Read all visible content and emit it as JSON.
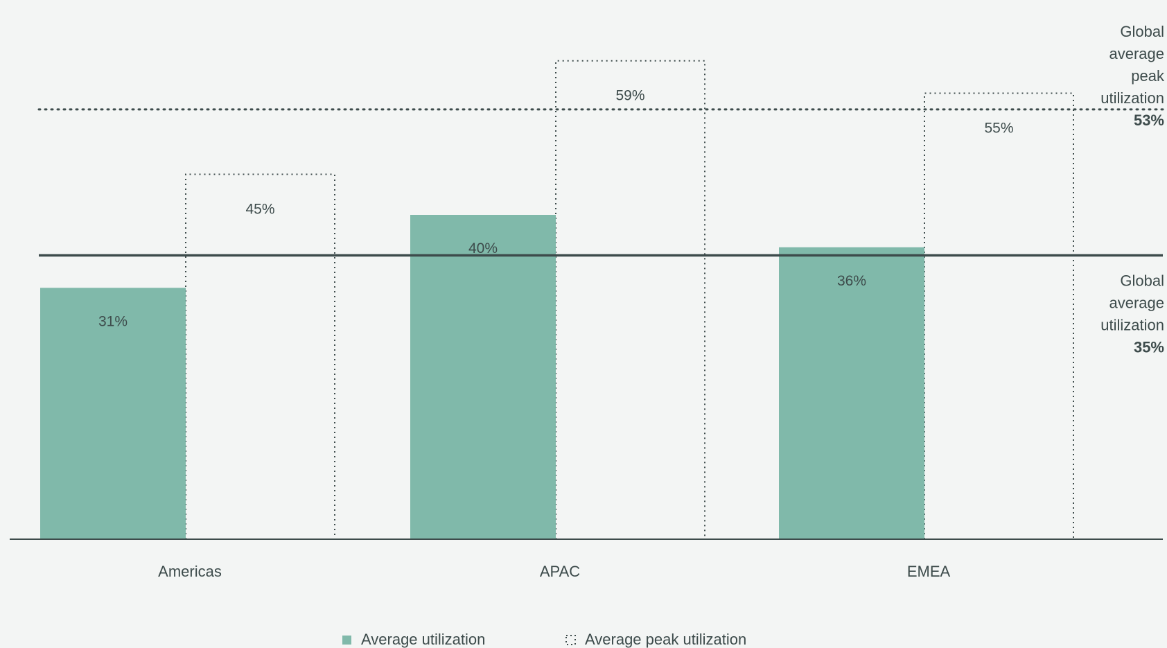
{
  "chart_data": {
    "type": "bar",
    "categories": [
      "Americas",
      "APAC",
      "EMEA"
    ],
    "series": [
      {
        "name": "Average utilization",
        "values": [
          31,
          40,
          36
        ],
        "labels": [
          "31%",
          "40%",
          "36%"
        ],
        "style": "solid",
        "color": "#80b9aa"
      },
      {
        "name": "Average peak utilization",
        "values": [
          45,
          59,
          55
        ],
        "labels": [
          "45%",
          "59%",
          "55%"
        ],
        "style": "dotted-outline",
        "color": "#3d4b4b"
      }
    ],
    "reference_lines": [
      {
        "id": "avg",
        "value": 35,
        "label_lines": [
          "Global",
          "average",
          "utilization"
        ],
        "value_label": "35%",
        "style": "solid"
      },
      {
        "id": "peak",
        "value": 53,
        "label_lines": [
          "Global",
          "average",
          "peak",
          "utilization"
        ],
        "value_label": "53%",
        "style": "dotted"
      }
    ],
    "ylim": [
      0,
      66
    ],
    "grid": false,
    "legend_position": "bottom-center"
  },
  "colors": {
    "background": "#f3f5f4",
    "bar": "#80b9aa",
    "ink": "#3d4b4b"
  }
}
